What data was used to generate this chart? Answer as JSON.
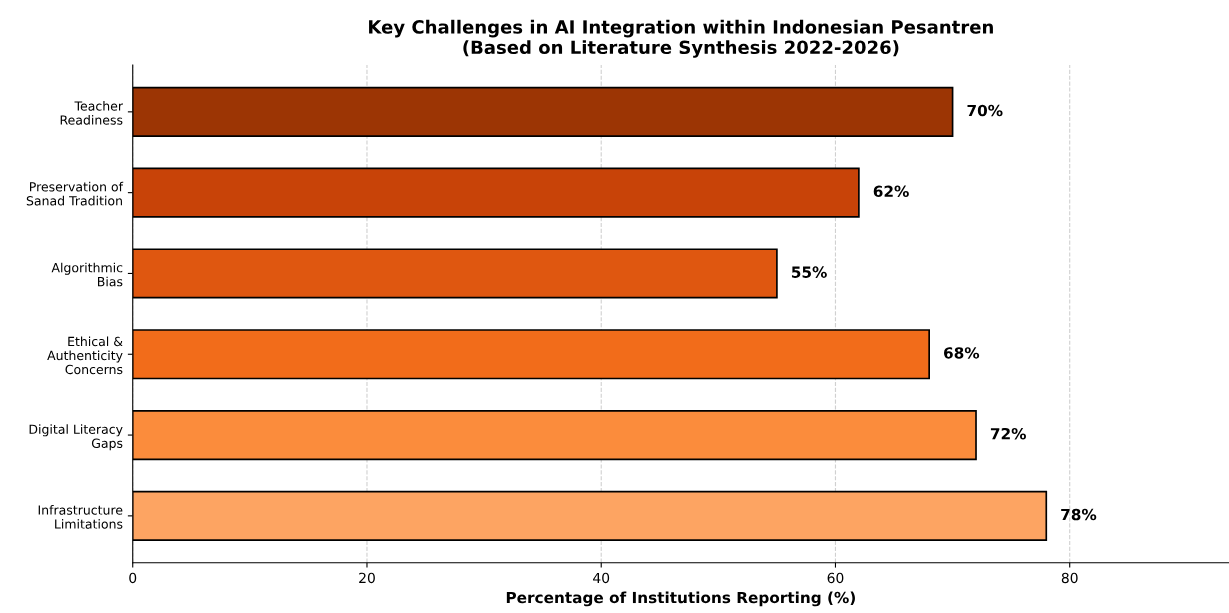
{
  "chart_data": {
    "type": "bar",
    "orientation": "horizontal",
    "title": "Key Challenges in AI Integration within Indonesian Pesantren\n(Based on Literature Synthesis 2022-2026)",
    "xlabel": "Percentage of Institutions Reporting (%)",
    "categories": [
      "Teacher\nReadiness",
      "Preservation of\nSanad Tradition",
      "Algorithmic\nBias",
      "Ethical &\nAuthenticity\nConcerns",
      "Digital Literacy\nGaps",
      "Infrastructure\nLimitations"
    ],
    "values": [
      70,
      62,
      55,
      68,
      72,
      78
    ],
    "colors": [
      "#9c3504",
      "#c84308",
      "#df5710",
      "#f26c1a",
      "#fb8c3c",
      "#fda462"
    ],
    "value_labels": [
      "70%",
      "62%",
      "55%",
      "68%",
      "72%",
      "78%"
    ],
    "xlim": [
      0,
      93.6
    ],
    "xticks": [
      0,
      20,
      40,
      60,
      80
    ],
    "grid": "x"
  }
}
